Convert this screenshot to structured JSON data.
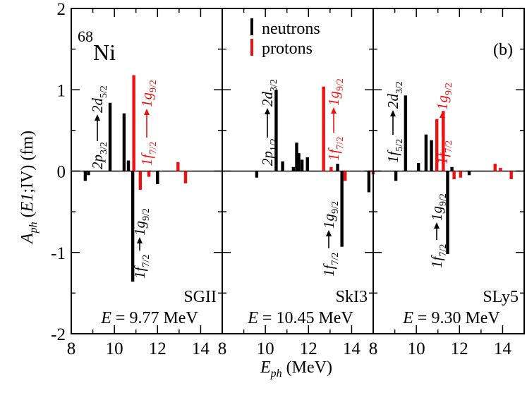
{
  "figure": {
    "panel_tag": "(b)",
    "nucleus_mass": "68",
    "nucleus_symbol": "Ni",
    "legend": {
      "neutrons": "neutrons",
      "protons": "protons"
    },
    "colors": {
      "neutrons": "#000000",
      "protons": "#ee1111"
    },
    "y_axis_label": {
      "main": "A",
      "sub": "ph",
      "rest1": " (",
      "italic": "E1",
      "rest2": ";IV)   (fm)"
    },
    "x_axis_label": {
      "main": "E",
      "sub": "ph",
      "rest": " (MeV)"
    }
  },
  "chart_data": [
    {
      "type": "bar",
      "panel": "SGII",
      "label": "SGII",
      "energy": "= 9.77 MeV",
      "xlim": [
        8,
        15
      ],
      "ylim": [
        -2,
        2
      ],
      "xticks": [
        8,
        10,
        12,
        14
      ],
      "yticks": [
        -2,
        -1,
        0,
        1,
        2
      ],
      "series": [
        {
          "name": "neutrons",
          "x": [
            8.65,
            8.8,
            9.8,
            10.45,
            10.65,
            10.85,
            12.0
          ],
          "values": [
            -0.12,
            -0.05,
            0.84,
            0.71,
            0.13,
            -1.36,
            -0.16
          ]
        },
        {
          "name": "protons",
          "x": [
            10.9,
            11.2,
            11.6,
            12.95,
            13.3
          ],
          "values": [
            1.18,
            -0.23,
            -0.07,
            0.11,
            -0.15
          ]
        }
      ],
      "annotations": [
        {
          "from": "2p",
          "from_sub": "3/2",
          "to": "2d",
          "to_sub": "5/2",
          "color": "black"
        },
        {
          "from": "1f",
          "from_sub": "7/2",
          "to": "1g",
          "to_sub": "9/2",
          "color": "black"
        },
        {
          "from": "1f",
          "from_sub": "7/2",
          "to": "1g",
          "to_sub": "9/2",
          "color": "red"
        }
      ]
    },
    {
      "type": "bar",
      "panel": "SkI3",
      "label": "SkI3",
      "energy": "= 10.45 MeV",
      "xlim": [
        8,
        15
      ],
      "ylim": [
        -2,
        2
      ],
      "xticks": [
        8,
        10,
        12,
        14
      ],
      "yticks": [
        -2,
        -1,
        0,
        1,
        2
      ],
      "series": [
        {
          "name": "neutrons",
          "x": [
            9.6,
            10.5,
            10.8,
            11.3,
            11.45,
            11.55,
            11.7,
            11.95,
            13.35,
            13.55,
            14.8
          ],
          "values": [
            -0.08,
            1.0,
            0.12,
            0.05,
            0.35,
            0.22,
            0.14,
            0.17,
            0.09,
            -0.93,
            -0.26
          ]
        },
        {
          "name": "protons",
          "x": [
            12.7,
            13.05,
            13.7,
            15.0
          ],
          "values": [
            1.04,
            0.05,
            -0.12,
            -0.04
          ]
        }
      ],
      "annotations": [
        {
          "from": "2p",
          "from_sub": "1/2",
          "to": "2d",
          "to_sub": "3/2",
          "color": "black"
        },
        {
          "from": "1f",
          "from_sub": "7/2",
          "to": "1g",
          "to_sub": "9/2",
          "color": "black"
        },
        {
          "from": "1f",
          "from_sub": "7/2",
          "to": "1g",
          "to_sub": "9/2",
          "color": "red"
        }
      ]
    },
    {
      "type": "bar",
      "panel": "SLy5",
      "label": "SLy5",
      "energy": "= 9.30 MeV",
      "xlim": [
        8,
        15
      ],
      "ylim": [
        -2,
        2
      ],
      "xticks": [
        8,
        10,
        12,
        14
      ],
      "yticks": [
        -2,
        -1,
        0,
        1,
        2
      ],
      "series": [
        {
          "name": "neutrons",
          "x": [
            9.05,
            9.5,
            10.1,
            10.45,
            10.7,
            11.45,
            11.65,
            12.45
          ],
          "values": [
            -0.12,
            0.93,
            0.1,
            0.45,
            0.38,
            -1.02,
            0.05,
            -0.05
          ]
        },
        {
          "name": "protons",
          "x": [
            10.95,
            11.25,
            11.75,
            12.05,
            13.65,
            13.9,
            14.4
          ],
          "values": [
            0.64,
            0.74,
            -0.1,
            -0.08,
            0.09,
            0.04,
            -0.1
          ]
        }
      ],
      "annotations": [
        {
          "from": "1f",
          "from_sub": "5/2",
          "to": "2d",
          "to_sub": "3/2",
          "color": "black"
        },
        {
          "from": "1f",
          "from_sub": "7/2",
          "to": "1g",
          "to_sub": "9/2",
          "color": "black"
        },
        {
          "from": "1f",
          "from_sub": "7/2",
          "to": "1g",
          "to_sub": "9/2",
          "color": "red"
        }
      ]
    }
  ]
}
